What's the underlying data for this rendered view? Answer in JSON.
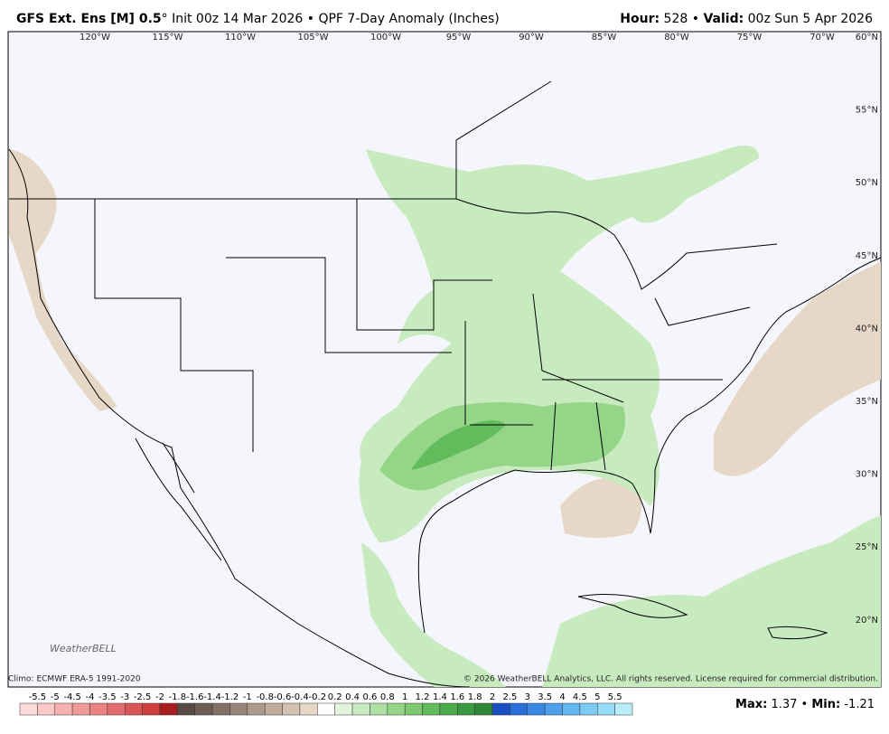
{
  "header": {
    "model": "GFS Ext.  Ens [M] 0.5",
    "degree": "°",
    "init": "Init 00z 14 Mar 2026",
    "separator": "•",
    "product": "QPF 7-Day Anomaly (Inches)",
    "hour_label": "Hour:",
    "hour": "528",
    "valid_label": "Valid:",
    "valid": "00z Sun 5 Apr 2026"
  },
  "map": {
    "longitudes": [
      "120°W",
      "115°W",
      "110°W",
      "105°W",
      "100°W",
      "95°W",
      "90°W",
      "85°W",
      "80°W",
      "75°W",
      "70°W"
    ],
    "latitudes": [
      "60°N",
      "55°N",
      "50°N",
      "45°N",
      "40°N",
      "35°N",
      "30°N",
      "25°N",
      "20°N"
    ],
    "logo": "WeatherBELL"
  },
  "footer": {
    "climo": "Climo: ECMWF ERA-5 1991-2020",
    "copyright": "© 2026 WeatherBELL Analytics, LLC. All rights reserved. License required for commercial distribution.",
    "max_label": "Max:",
    "max": "1.37",
    "separator": "•",
    "min_label": "Min:",
    "min": "-1.21"
  },
  "colorbar": {
    "labels": [
      -5.5,
      -5,
      -4.5,
      -4,
      -3.5,
      -3,
      -2.5,
      -2,
      -1.8,
      -1.6,
      -1.4,
      -1.2,
      -1,
      -0.8,
      -0.6,
      -0.4,
      -0.2,
      0.2,
      0.4,
      0.6,
      0.8,
      1,
      1.2,
      1.4,
      1.6,
      1.8,
      2,
      2.5,
      3,
      3.5,
      4,
      4.5,
      5,
      5.5
    ],
    "colors": [
      "#ffd9d9",
      "#fcc8c8",
      "#f7b0b0",
      "#f29a9a",
      "#ec8383",
      "#e46c6c",
      "#da5555",
      "#cf3f3f",
      "#a81e1e",
      "#5a4a44",
      "#6e5d55",
      "#837066",
      "#978478",
      "#ab998b",
      "#c0ad9e",
      "#d3c2b2",
      "#e6d7c6",
      "#ffffff",
      "#e2f4dc",
      "#c8eabf",
      "#afe0a3",
      "#95d587",
      "#7cc96f",
      "#62bc5c",
      "#4bab4b",
      "#3a9940",
      "#2c8635",
      "#1a4fc4",
      "#2a6fd8",
      "#3b88e2",
      "#4fa0ea",
      "#64b7f0",
      "#7ccbf4",
      "#97ddf7",
      "#b9ecfb"
    ]
  }
}
